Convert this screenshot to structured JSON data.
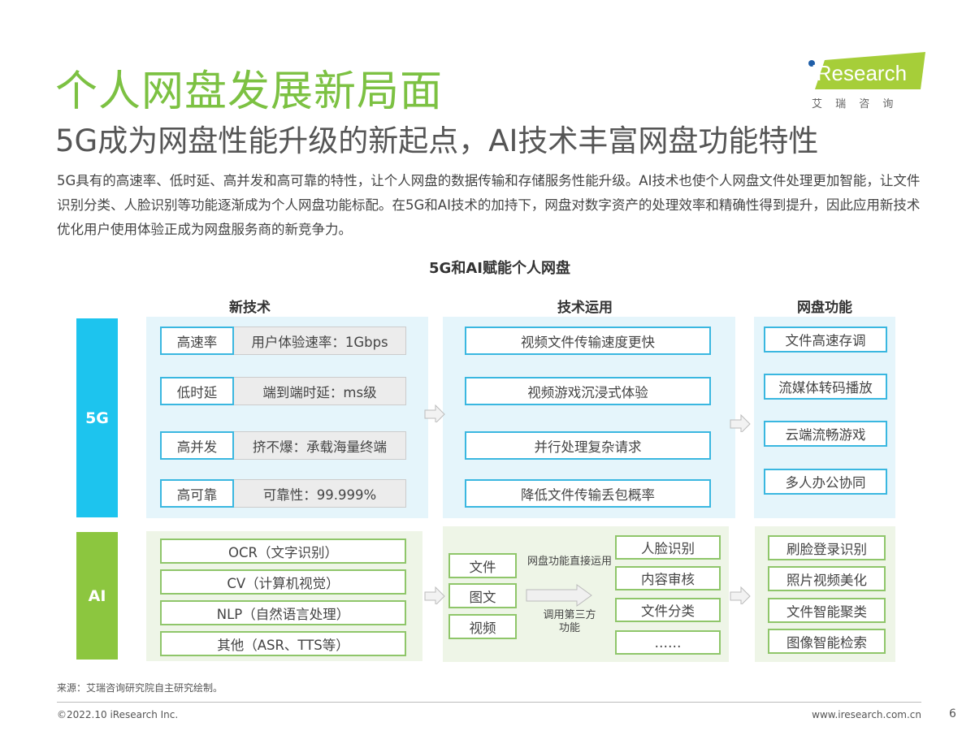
{
  "header": {
    "title": "个人网盘发展新局面",
    "subtitle": "5G成为网盘性能升级的新起点，AI技术丰富网盘功能特性",
    "body": "5G具有的高速率、低时延、高并发和高可靠的特性，让个人网盘的数据传输和存储服务性能升级。AI技术也使个人网盘文件处理更加智能，让文件识别分类、人脸识别等功能逐渐成为个人网盘功能标配。在5G和AI技术的加持下，网盘对数字资产的处理效率和精确性得到提升，因此应用新技术优化用户使用体验正成为网盘服务商的新竞争力。"
  },
  "logo": {
    "text": "iResearch",
    "cn": "艾 瑞 咨 询",
    "color": "#a6ce39"
  },
  "diagram": {
    "title": "5G和AI赋能个人网盘",
    "columns": [
      "新技术",
      "技术运用",
      "网盘功能"
    ],
    "colors": {
      "fiveg": "#1dc4ee",
      "ai": "#8cc63f",
      "fiveg_panel": "#e5f5fb",
      "ai_panel": "#eef5e7"
    },
    "fiveg": {
      "label": "5G",
      "tech": [
        {
          "name": "高速率",
          "value": "用户体验速率：1Gbps"
        },
        {
          "name": "低时延",
          "value": "端到端时延：ms级"
        },
        {
          "name": "高并发",
          "value": "挤不爆：承载海量终端"
        },
        {
          "name": "高可靠",
          "value": "可靠性：99.999%"
        }
      ],
      "apps": [
        "视频文件传输速度更快",
        "视频游戏沉浸式体验",
        "并行处理复杂请求",
        "降低文件传输丢包概率"
      ],
      "functions": [
        "文件高速存调",
        "流媒体转码播放",
        "云端流畅游戏",
        "多人办公协同"
      ]
    },
    "ai": {
      "label": "AI",
      "tech": [
        "OCR（文字识别）",
        "CV（计算机视觉）",
        "NLP（自然语言处理）",
        "其他（ASR、TTS等）"
      ],
      "inputs": [
        "文件",
        "图文",
        "视频"
      ],
      "arrow_top": "网盘功能直接运用",
      "arrow_bottom": "调用第三方功能",
      "apps": [
        "人脸识别",
        "内容审核",
        "文件分类",
        "……"
      ],
      "functions": [
        "刷脸登录识别",
        "照片视频美化",
        "文件智能聚类",
        "图像智能检索"
      ]
    }
  },
  "footer": {
    "source": "来源：艾瑞咨询研究院自主研究绘制。",
    "copyright": "©2022.10 iResearch Inc.",
    "url": "www.iresearch.com.cn",
    "page": "6"
  }
}
